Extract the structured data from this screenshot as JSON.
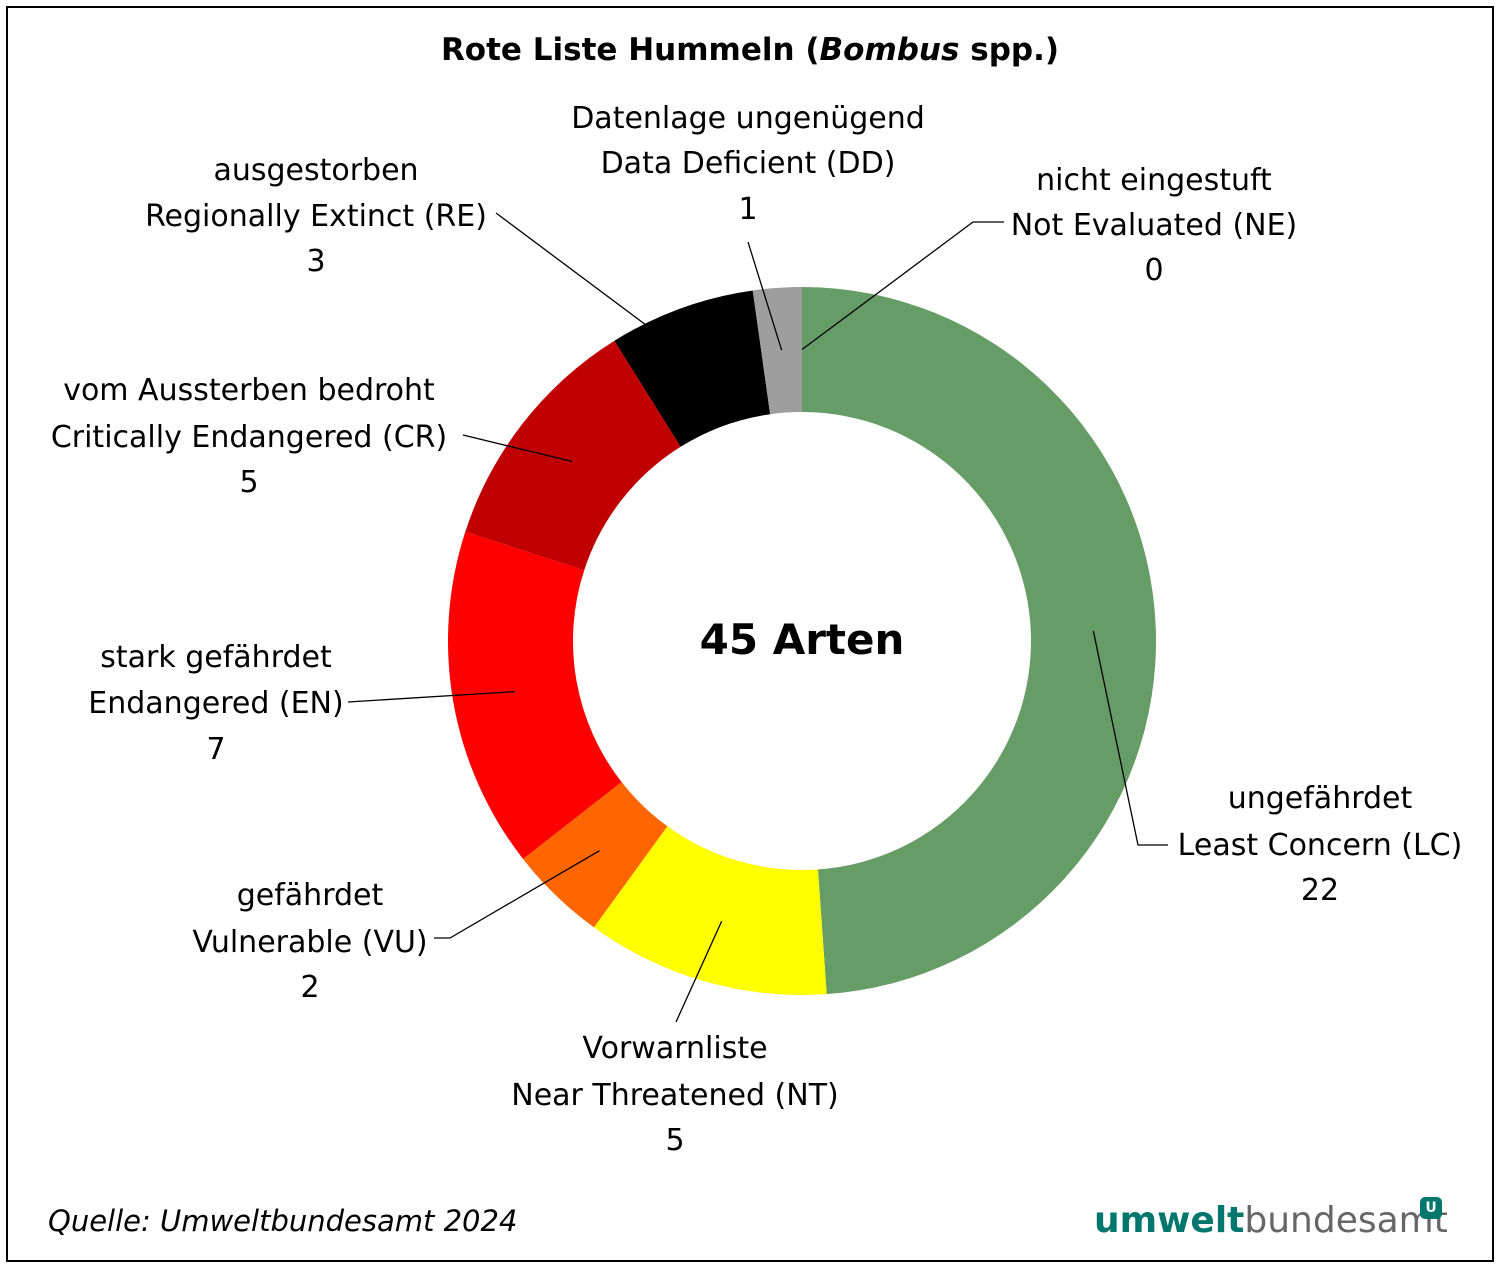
{
  "chart_data": {
    "type": "pie",
    "variant": "donut",
    "title": "Rote Liste Hummeln",
    "title_italic": "Bombus",
    "title_suffix": " spp.)",
    "center_label": "45 Arten",
    "total": 45,
    "slices": [
      {
        "de": "ungefährdet",
        "en": "Least Concern (LC)",
        "value": 22,
        "color": "#669c66"
      },
      {
        "de": "Vorwarnliste",
        "en": "Near Threatened (NT)",
        "value": 5,
        "color": "#ffff00"
      },
      {
        "de": "gefährdet",
        "en": "Vulnerable (VU)",
        "value": 2,
        "color": "#ff6600"
      },
      {
        "de": "stark gefährdet",
        "en": "Endangered (EN)",
        "value": 7,
        "color": "#ff0000"
      },
      {
        "de": "vom Aussterben bedroht",
        "en": "Critically Endangered (CR)",
        "value": 5,
        "color": "#c00000"
      },
      {
        "de": "ausgestorben",
        "en": "Regionally Extinct (RE)",
        "value": 3,
        "color": "#000000"
      },
      {
        "de": "Datenlage ungenügend",
        "en": "Data Deficient (DD)",
        "value": 1,
        "color": "#9e9e9e"
      },
      {
        "de": "nicht eingestuft",
        "en": "Not Evaluated (NE)",
        "value": 0,
        "color": "#ffffff"
      }
    ]
  },
  "footer": {
    "source": "Quelle: Umweltbundesamt 2024",
    "logo_part1": "umwelt",
    "logo_part2": "bundesamt",
    "logo_mark": "U"
  }
}
